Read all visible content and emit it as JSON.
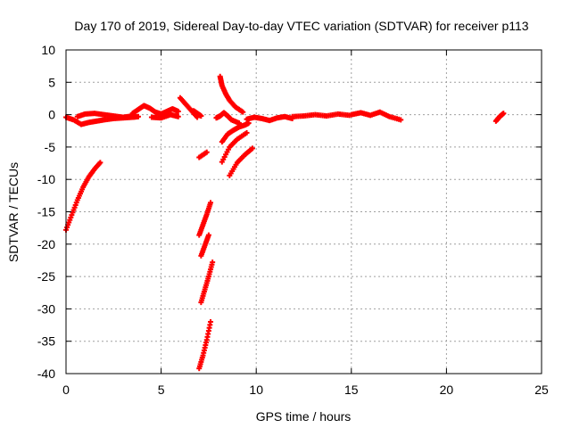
{
  "chart_data": {
    "type": "scatter",
    "title": "Day 170 of 2019, Sidereal Day-to-day VTEC variation (SDTVAR) for receiver p113",
    "xlabel": "GPS time / hours",
    "ylabel": "SDTVAR / TECUs",
    "xlim": [
      0,
      25
    ],
    "ylim": [
      -40,
      10
    ],
    "xticks": [
      0,
      5,
      10,
      15,
      20,
      25
    ],
    "yticks": [
      10,
      5,
      0,
      -5,
      -10,
      -15,
      -20,
      -25,
      -30,
      -35,
      -40
    ],
    "grid": true,
    "marker": "plus",
    "color": "#ff0000",
    "segments": [
      {
        "x": [
          0.0,
          0.3,
          0.6,
          0.9,
          1.2,
          1.5,
          1.8
        ],
        "y": [
          -17.8,
          -15.5,
          -13.2,
          -11.2,
          -9.6,
          -8.4,
          -7.4
        ]
      },
      {
        "x": [
          0.0,
          0.4,
          0.8,
          1.2,
          1.6,
          2.0,
          2.5,
          3.0,
          3.5,
          3.8
        ],
        "y": [
          -0.4,
          -0.8,
          -1.5,
          -1.2,
          -1.0,
          -0.8,
          -0.6,
          -0.5,
          -0.4,
          -0.3
        ]
      },
      {
        "x": [
          0.6,
          1.0,
          1.5,
          2.0,
          2.5,
          3.0,
          3.5
        ],
        "y": [
          -0.3,
          0.1,
          0.2,
          0.0,
          -0.2,
          -0.4,
          -0.2
        ]
      },
      {
        "x": [
          3.5,
          3.8,
          4.1,
          4.4,
          4.7,
          5.0,
          5.3,
          5.6,
          5.9
        ],
        "y": [
          0.2,
          0.8,
          1.4,
          1.0,
          0.4,
          0.1,
          0.5,
          0.9,
          0.5
        ]
      },
      {
        "x": [
          4.5,
          5.0,
          5.5,
          5.9
        ],
        "y": [
          -0.4,
          -0.5,
          0.0,
          -0.3
        ]
      },
      {
        "x": [
          6.0,
          6.3,
          6.6,
          6.9
        ],
        "y": [
          2.6,
          1.6,
          0.6,
          -0.4
        ]
      },
      {
        "x": [
          6.7,
          6.9,
          7.1
        ],
        "y": [
          0.6,
          0.2,
          -0.2
        ]
      },
      {
        "x": [
          7.0,
          7.4
        ],
        "y": [
          -6.6,
          -5.8
        ]
      },
      {
        "x": [
          7.0,
          7.2,
          7.4,
          7.6
        ],
        "y": [
          -18.6,
          -17.0,
          -15.4,
          -13.6
        ]
      },
      {
        "x": [
          7.1,
          7.3,
          7.5
        ],
        "y": [
          -21.8,
          -20.2,
          -18.6
        ]
      },
      {
        "x": [
          7.1,
          7.3,
          7.5,
          7.7
        ],
        "y": [
          -29.0,
          -27.0,
          -25.0,
          -22.8
        ]
      },
      {
        "x": [
          7.0,
          7.2,
          7.4,
          7.6
        ],
        "y": [
          -39.2,
          -37.2,
          -34.8,
          -32.0
        ]
      },
      {
        "x": [
          7.9,
          8.1,
          8.3,
          8.5,
          8.7,
          9.1
        ],
        "y": [
          -0.5,
          -0.2,
          0.3,
          -0.2,
          -0.8,
          -1.3
        ]
      },
      {
        "x": [
          8.1,
          8.2,
          8.4,
          8.6,
          8.9,
          9.3
        ],
        "y": [
          5.9,
          4.5,
          3.2,
          2.2,
          1.2,
          0.4
        ]
      },
      {
        "x": [
          8.2,
          8.5,
          8.8,
          9.1,
          9.4,
          9.6
        ],
        "y": [
          -4.2,
          -3.0,
          -2.4,
          -1.9,
          -1.6,
          -1.3
        ]
      },
      {
        "x": [
          8.2,
          8.6,
          9.0,
          9.5
        ],
        "y": [
          -7.3,
          -5.0,
          -3.8,
          -2.8
        ]
      },
      {
        "x": [
          8.6,
          9.0,
          9.4,
          9.8
        ],
        "y": [
          -9.4,
          -7.4,
          -6.2,
          -5.2
        ]
      },
      {
        "x": [
          9.5,
          9.9,
          10.3,
          10.7,
          11.1,
          11.5,
          11.9
        ],
        "y": [
          -0.7,
          -0.4,
          -0.6,
          -0.9,
          -0.5,
          -0.3,
          -0.6
        ]
      },
      {
        "x": [
          11.9,
          12.5,
          13.1,
          13.7,
          14.3,
          14.9
        ],
        "y": [
          -0.3,
          -0.2,
          0.0,
          -0.2,
          0.1,
          -0.1
        ]
      },
      {
        "x": [
          15.0,
          15.5,
          16.0,
          16.5,
          17.0,
          17.6
        ],
        "y": [
          0.0,
          0.3,
          -0.1,
          0.4,
          -0.3,
          -0.8
        ]
      },
      {
        "x": [
          22.6,
          22.8,
          23.0
        ],
        "y": [
          -1.0,
          -0.3,
          0.2
        ]
      }
    ]
  }
}
